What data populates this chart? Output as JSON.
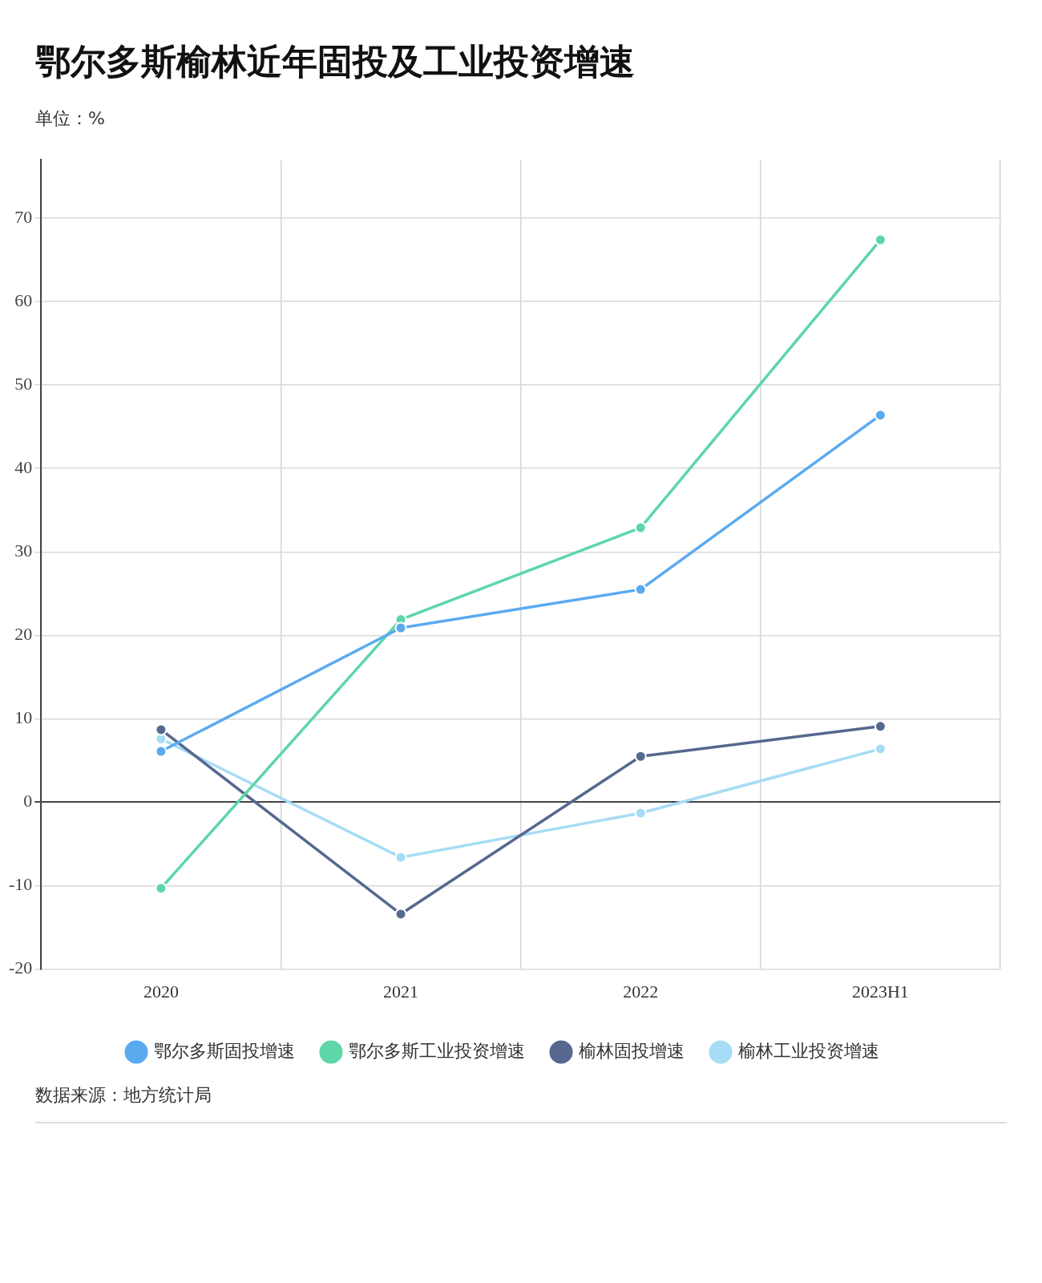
{
  "chart_data": {
    "type": "line",
    "title": "鄂尔多斯榆林近年固投及工业投资增速",
    "subtitle": "单位：%",
    "annotations": [
      "数据来源：地方统计局"
    ],
    "categories": [
      "2020",
      "2021",
      "2022",
      "2023H1"
    ],
    "series": [
      {
        "name": "鄂尔多斯固投增速",
        "color": "#5aaaf0",
        "values": [
          6.1,
          20.9,
          25.5,
          46.4
        ]
      },
      {
        "name": "鄂尔多斯工业投资增速",
        "color": "#5dd6a8",
        "values": [
          -10.3,
          21.9,
          32.9,
          67.4
        ]
      },
      {
        "name": "榆林固投增速",
        "color": "#56688f",
        "values": [
          8.7,
          -13.4,
          5.5,
          9.1
        ]
      },
      {
        "name": "榆林工业投资增速",
        "color": "#a6dcf5",
        "values": [
          7.6,
          -6.6,
          -1.3,
          6.4
        ]
      }
    ],
    "ylim": [
      -20,
      77
    ],
    "yticks": [
      -20,
      -10,
      0,
      10,
      20,
      30,
      40,
      50,
      60,
      70
    ],
    "grid": true,
    "legend": "bottom",
    "marker": "circle",
    "line_style": "solid"
  }
}
